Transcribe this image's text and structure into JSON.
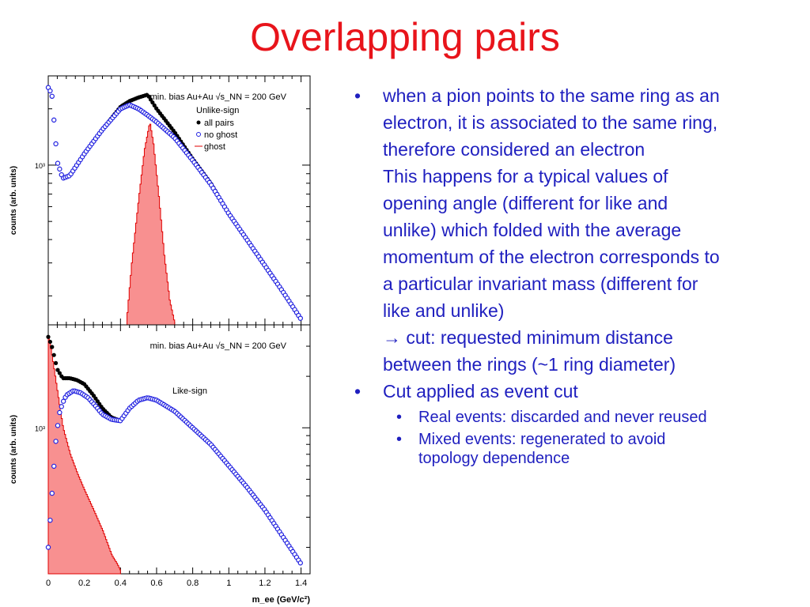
{
  "slide": {
    "title": "Overlapping pairs",
    "bullets": [
      {
        "lines": [
          "when a pion points to the same ring as an",
          "electron, it is associated to the same ring,",
          "therefore considered an electron",
          "This happens for a typical values of",
          "opening angle (different for like and",
          "unlike) which folded with the average",
          "momentum of the electron corresponds to",
          "a particular invariant mass (different for",
          "like and unlike)",
          "→ cut: requested minimum distance",
          "between the rings (~1 ring diameter)"
        ]
      },
      {
        "lines": [
          "Cut applied as event cut"
        ],
        "sub": [
          {
            "lines": [
              "Real events: discarded and never reused"
            ]
          },
          {
            "lines": [
              "Mixed events: regenerated to avoid",
              "topology dependence"
            ]
          }
        ]
      }
    ]
  },
  "colors": {
    "title": "#e8141b",
    "text": "#1f1fbf",
    "all_pairs": "#000000",
    "no_ghost": "#2020e0",
    "ghost_fill": "#f89090",
    "ghost_line": "#e00000"
  },
  "chart_data": [
    {
      "type": "scatter",
      "panel": "top",
      "annotation": "min. bias Au+Au √s_NN = 200 GeV",
      "subtitle": "Unlike-sign",
      "ylabel": "counts (arb. units)",
      "y_tick_label": "10³",
      "y_log": true,
      "xlim": [
        0,
        1.45
      ],
      "legend": [
        "all pairs",
        "no ghost",
        "ghost"
      ],
      "legend_position": "top-right",
      "series": [
        {
          "name": "all pairs",
          "marker": "filled-circle",
          "x": [
            0.0,
            0.02,
            0.05,
            0.08,
            0.12,
            0.2,
            0.3,
            0.4,
            0.45,
            0.5,
            0.55,
            0.6,
            0.7,
            0.8,
            0.9,
            1.0,
            1.1,
            1.2,
            1.3,
            1.4
          ],
          "y": [
            2600,
            2400,
            1040,
            850,
            880,
            1150,
            1550,
            2050,
            2200,
            2300,
            2380,
            2000,
            1500,
            1080,
            800,
            550,
            400,
            290,
            210,
            150
          ]
        },
        {
          "name": "no ghost",
          "marker": "open-circle",
          "x": [
            0.0,
            0.02,
            0.05,
            0.08,
            0.12,
            0.2,
            0.3,
            0.4,
            0.45,
            0.5,
            0.55,
            0.6,
            0.7,
            0.8,
            0.9,
            1.0,
            1.1,
            1.2,
            1.3,
            1.4
          ],
          "y": [
            2600,
            2400,
            1040,
            850,
            880,
            1150,
            1550,
            2000,
            2100,
            2000,
            1850,
            1700,
            1400,
            1060,
            790,
            550,
            400,
            290,
            210,
            150
          ]
        },
        {
          "name": "ghost",
          "marker": "histogram",
          "x": [
            0.43,
            0.46,
            0.5,
            0.53,
            0.56,
            0.58,
            0.61,
            0.64,
            0.67,
            0.7
          ],
          "y": [
            140,
            300,
            680,
            1200,
            1700,
            1300,
            680,
            330,
            190,
            140
          ]
        }
      ]
    },
    {
      "type": "scatter",
      "panel": "bottom",
      "annotation": "min. bias Au+Au √s_NN = 200 GeV",
      "subtitle": "Like-sign",
      "ylabel": "counts (arb. units)",
      "xlabel": "m_ee (GeV/c²)",
      "y_tick_label": "10³",
      "y_log": true,
      "xlim": [
        0,
        1.45
      ],
      "x_ticks": [
        "0",
        "0.2",
        "0.4",
        "0.6",
        "0.8",
        "1",
        "1.2",
        "1.4"
      ],
      "series": [
        {
          "name": "all pairs",
          "marker": "filled-circle",
          "x": [
            0.0,
            0.02,
            0.05,
            0.08,
            0.12,
            0.16,
            0.2,
            0.25,
            0.3,
            0.35,
            0.4,
            0.45,
            0.5,
            0.55,
            0.6,
            0.7,
            0.8,
            0.9,
            1.0,
            1.1,
            1.2,
            1.3,
            1.4
          ],
          "y": [
            3400,
            3000,
            2200,
            1950,
            1950,
            1900,
            1800,
            1550,
            1300,
            1150,
            1100,
            1300,
            1450,
            1500,
            1450,
            1250,
            1000,
            800,
            600,
            450,
            330,
            230,
            160
          ]
        },
        {
          "name": "no ghost",
          "marker": "open-circle",
          "x": [
            0.0,
            0.02,
            0.04,
            0.06,
            0.08,
            0.1,
            0.14,
            0.18,
            0.22,
            0.26,
            0.3,
            0.35,
            0.4,
            0.45,
            0.5,
            0.55,
            0.6,
            0.7,
            0.8,
            0.9,
            1.0,
            1.1,
            1.2,
            1.3,
            1.4
          ],
          "y": [
            200,
            400,
            800,
            1200,
            1400,
            1550,
            1650,
            1600,
            1500,
            1350,
            1200,
            1120,
            1100,
            1300,
            1450,
            1500,
            1450,
            1250,
            1000,
            800,
            600,
            450,
            330,
            230,
            160
          ]
        },
        {
          "name": "ghost",
          "marker": "histogram",
          "x": [
            0.0,
            0.02,
            0.05,
            0.08,
            0.12,
            0.16,
            0.2,
            0.25,
            0.3,
            0.35,
            0.38,
            0.4
          ],
          "y": [
            3400,
            2600,
            1600,
            1000,
            700,
            540,
            430,
            330,
            250,
            180,
            160,
            145
          ]
        }
      ]
    }
  ]
}
